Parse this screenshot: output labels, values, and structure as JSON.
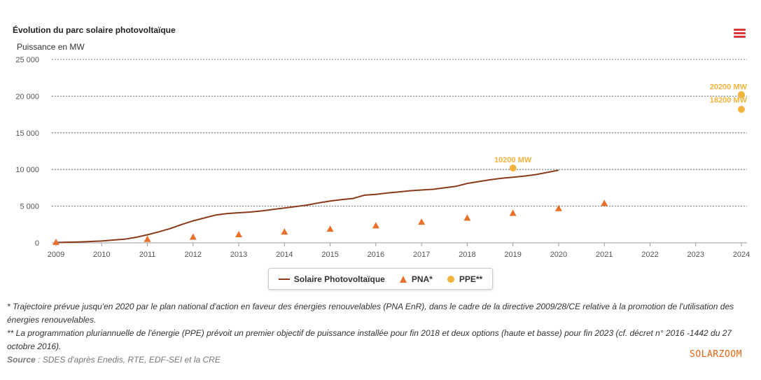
{
  "chart_data": {
    "type": "line",
    "title": "Évolution du parc solaire photovoltaïque",
    "ylabel": "Puissance en MW",
    "xlabel": "",
    "xlim": [
      2009,
      2024
    ],
    "ylim": [
      0,
      25000
    ],
    "x_ticks": [
      "2009",
      "2010",
      "2011",
      "2012",
      "2013",
      "2014",
      "2015",
      "2016",
      "2017",
      "2018",
      "2019",
      "2020",
      "2021",
      "2022",
      "2023",
      "2024"
    ],
    "y_ticks": [
      "25 000",
      "20 000",
      "15 000",
      "10 000",
      "5 000",
      "0"
    ],
    "y_tick_values": [
      25000,
      20000,
      15000,
      10000,
      5000,
      0
    ],
    "grid": true,
    "legend_position": "bottom",
    "series": [
      {
        "name": "Solaire Photovoltaïque",
        "kind": "line",
        "color": "#8b3a1a",
        "x": [
          2009,
          2009.5,
          2010,
          2010.25,
          2010.5,
          2010.75,
          2011,
          2011.25,
          2011.5,
          2011.75,
          2012,
          2012.25,
          2012.5,
          2012.75,
          2013,
          2013.25,
          2013.5,
          2013.75,
          2014,
          2014.25,
          2014.5,
          2014.75,
          2015,
          2015.25,
          2015.5,
          2015.75,
          2016,
          2016.25,
          2016.5,
          2016.75,
          2017,
          2017.25,
          2017.5,
          2017.75,
          2018,
          2018.25,
          2018.5,
          2018.75,
          2019,
          2019.25,
          2019.5,
          2019.75,
          2020
        ],
        "values": [
          50,
          120,
          250,
          380,
          500,
          750,
          1100,
          1500,
          1950,
          2500,
          3000,
          3400,
          3800,
          4000,
          4100,
          4200,
          4350,
          4550,
          4750,
          4950,
          5150,
          5450,
          5700,
          5900,
          6050,
          6500,
          6600,
          6800,
          6950,
          7100,
          7200,
          7300,
          7500,
          7700,
          8100,
          8350,
          8600,
          8800,
          8950,
          9100,
          9300,
          9600,
          9900
        ]
      },
      {
        "name": "PNA*",
        "kind": "triangle",
        "color": "#e8702a",
        "x": [
          2009,
          2011,
          2012,
          2013,
          2014,
          2015,
          2016,
          2017,
          2018,
          2019,
          2020,
          2021
        ],
        "values": [
          100,
          500,
          800,
          1150,
          1500,
          1900,
          2350,
          2850,
          3400,
          4050,
          4700,
          5400
        ]
      },
      {
        "name": "PPE**",
        "kind": "circle",
        "color": "#f3b33d",
        "x": [
          2019,
          2024,
          2024
        ],
        "values": [
          10200,
          20200,
          18200
        ]
      }
    ],
    "annotations": [
      {
        "text": "10200 MW",
        "x": 2019,
        "y": 10200
      },
      {
        "text": "20200 MW",
        "x": 2024,
        "y": 20200
      },
      {
        "text": "18200 MW",
        "x": 2024,
        "y": 18200
      }
    ]
  },
  "menu": {
    "icon": "hamburger-menu-icon"
  },
  "footnotes": {
    "pna": "* Trajectoire prévue jusqu'en 2020 par le plan national d'action en faveur des énergies renouvelables (PNA EnR), dans le cadre de la directive 2009/28/CE relative à la promotion de l'utilisation des énergies renouvelables.",
    "ppe": "** La programmation pluriannuelle de l'énergie (PPE) prévoit un premier objectif de puissance installée pour fin 2018 et deux options (haute et basse) pour fin 2023 (cf. décret n° 2016 -1442 du 27 octobre 2016).",
    "source_label": "Source",
    "source_text": " : SDES d'après Enedis, RTE, EDF-SEI et la CRE"
  },
  "brand": "SOLARZOOM"
}
